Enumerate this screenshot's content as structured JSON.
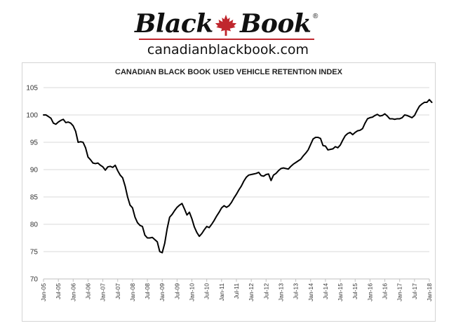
{
  "brand": {
    "logo_left": "Black",
    "logo_right": "Book",
    "registered": "®",
    "url": "canadianblackbook.com",
    "accent_color": "#c0262d"
  },
  "chart_data": {
    "type": "line",
    "title": "CANADIAN BLACK BOOK USED VEHICLE RETENTION INDEX",
    "xlabel": "",
    "ylabel": "",
    "ylim": [
      70,
      105
    ],
    "yticks": [
      70,
      75,
      80,
      85,
      90,
      95,
      100,
      105
    ],
    "xtick_labels": [
      "Jan-05",
      "Jul-05",
      "Jan-06",
      "Jul-06",
      "Jan-07",
      "Jul-07",
      "Jan-08",
      "Jul-08",
      "Jan-09",
      "Jul-09",
      "Jan-10",
      "Jul-10",
      "Jan-11",
      "Jul-11",
      "Jan-12",
      "Jul-12",
      "Jan-13",
      "Jul-13",
      "Jan-14",
      "Jul-14",
      "Jan-15",
      "Jul-15",
      "Jan-16",
      "Jul-16",
      "Jan-17",
      "Jul-17",
      "Jan-18"
    ],
    "grid": true,
    "line_color": "#000000",
    "series": [
      {
        "x_start": "Jan-05",
        "frequency": "monthly",
        "values": [
          100,
          100,
          99.7,
          99.4,
          98.5,
          98.3,
          98.7,
          99,
          99.2,
          98.6,
          98.7,
          98.5,
          98,
          97,
          95,
          95.1,
          95,
          94,
          92.3,
          91.8,
          91.2,
          91.1,
          91.2,
          90.8,
          90.5,
          89.9,
          90.5,
          90.6,
          90.4,
          90.8,
          89.8,
          89,
          88.5,
          87,
          85,
          83.5,
          83,
          81.3,
          80.3,
          79.8,
          79.6,
          78,
          77.5,
          77.5,
          77.6,
          77.2,
          76.8,
          75,
          74.8,
          76.5,
          79.2,
          81.3,
          81.8,
          82.5,
          83.1,
          83.5,
          83.8,
          82.8,
          81.7,
          82.2,
          81,
          79.5,
          78.5,
          77.8,
          78.3,
          79,
          79.6,
          79.4,
          80,
          80.7,
          81.5,
          82.2,
          83,
          83.4,
          83.1,
          83.4,
          84,
          84.8,
          85.5,
          86.3,
          87,
          87.9,
          88.6,
          89,
          89.1,
          89.2,
          89.3,
          89.5,
          88.9,
          88.8,
          89.1,
          89.2,
          88,
          89,
          89.3,
          89.8,
          90.2,
          90.3,
          90.2,
          90.1,
          90.6,
          91,
          91.3,
          91.6,
          91.9,
          92.5,
          93,
          93.6,
          94.6,
          95.6,
          95.9,
          95.9,
          95.7,
          94.4,
          94.3,
          93.6,
          93.7,
          93.8,
          94.2,
          94,
          94.5,
          95.4,
          96.2,
          96.6,
          96.8,
          96.4,
          96.8,
          97.1,
          97.2,
          97.5,
          98.5,
          99.3,
          99.5,
          99.6,
          99.9,
          100.1,
          99.8,
          99.9,
          100.2,
          99.8,
          99.3,
          99.3,
          99.2,
          99.3,
          99.3,
          99.5,
          100,
          99.9,
          99.7,
          99.5,
          99.9,
          100.8,
          101.6,
          102,
          102.3,
          102.3,
          102.8,
          102.3
        ]
      }
    ]
  }
}
